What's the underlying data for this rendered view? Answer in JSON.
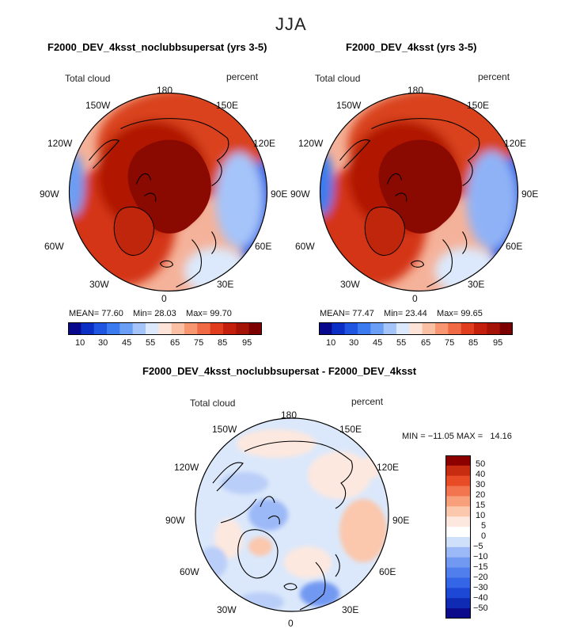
{
  "season": "JJA",
  "colors": {
    "seq": [
      "#08088c",
      "#0b2fc4",
      "#1f55e0",
      "#3b7bef",
      "#6b9ef5",
      "#a5c4fa",
      "#dce9fc",
      "#fde3d8",
      "#fbbfa4",
      "#f79670",
      "#f06a46",
      "#e03c1e",
      "#c41f0c",
      "#a51206",
      "#7d0000"
    ],
    "div": [
      "#0a0a8a",
      "#0f2ab3",
      "#1d48d6",
      "#3465e6",
      "#507fed",
      "#7299f2",
      "#9bb8f7",
      "#cfe0fb",
      "#ffffff",
      "#fde8df",
      "#fbc7ad",
      "#f8a07c",
      "#f27550",
      "#e84c26",
      "#c82c10",
      "#8c0000"
    ],
    "ocean_seq": "#f5b29a",
    "land_seq": "#d43416",
    "pole_seq": "#8a0a02",
    "ocean_div": "#dbe8fb"
  },
  "panels": [
    {
      "title": "F2000_DEV_4ksst_noclubbsupersat (yrs 3-5)",
      "variable": "Total cloud",
      "units": "percent",
      "mean_label": "MEAN=",
      "mean": "77.60",
      "min_label": "Min=",
      "min": "28.03",
      "max_label": "Max=",
      "max": "99.70"
    },
    {
      "title": "F2000_DEV_4ksst (yrs 3-5)",
      "variable": "Total cloud",
      "units": "percent",
      "mean_label": "MEAN=",
      "mean": "77.47",
      "min_label": "Min=",
      "min": "23.44",
      "max_label": "Max=",
      "max": "99.65"
    }
  ],
  "lon_labels": {
    "top": "180",
    "nw1": "150W",
    "ne1": "150E",
    "nw2": "120W",
    "ne2": "120E",
    "w": "90W",
    "e": "90E",
    "sw2": "60W",
    "se2": "60E",
    "sw1": "30W",
    "se1": "30E",
    "bottom": "0"
  },
  "colorbar_labels": [
    "10",
    "30",
    "45",
    "55",
    "65",
    "75",
    "85",
    "95"
  ],
  "diff": {
    "title": "F2000_DEV_4ksst_noclubbsupersat - F2000_DEV_4ksst",
    "variable": "Total cloud",
    "units": "percent",
    "minmax_text": "MIN = −11.05 MAX =   14.16",
    "colorbar_labels": [
      "50",
      "40",
      "30",
      "20",
      "15",
      "10",
      "5",
      "0",
      "−5",
      "−10",
      "−15",
      "−20",
      "−30",
      "−40",
      "−50"
    ]
  }
}
